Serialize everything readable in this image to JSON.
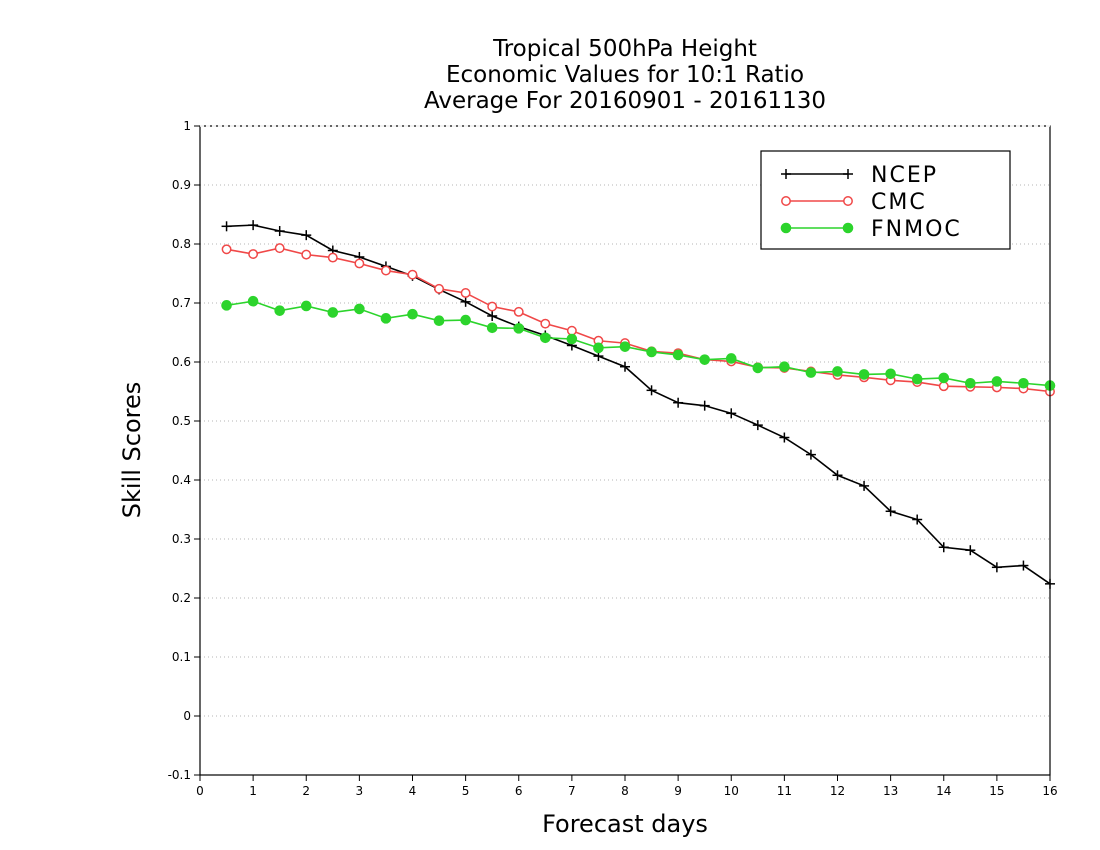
{
  "chart_data": {
    "type": "line",
    "title_lines": [
      "Tropical 500hPa Height",
      "Economic Values for 10:1 Ratio",
      "Average For 20160901 - 20161130"
    ],
    "xlabel": "Forecast days",
    "ylabel": "Skill Scores",
    "xlim": [
      0,
      16
    ],
    "ylim": [
      -0.1,
      1
    ],
    "x_ticks": [
      0,
      1,
      2,
      3,
      4,
      5,
      6,
      7,
      8,
      9,
      10,
      11,
      12,
      13,
      14,
      15,
      16
    ],
    "y_ticks": [
      -0.1,
      0,
      0.1,
      0.2,
      0.3,
      0.4,
      0.5,
      0.6,
      0.7,
      0.8,
      0.9,
      1
    ],
    "y_tick_labels": [
      "-0.1",
      "0",
      "0.1",
      "0.2",
      "0.3",
      "0.4",
      "0.5",
      "0.6",
      "0.7",
      "0.8",
      "0.9",
      "1"
    ],
    "grid": "horizontal dotted",
    "legend_position": "top-right",
    "x": [
      0.5,
      1,
      1.5,
      2,
      2.5,
      3,
      3.5,
      4,
      4.5,
      5,
      5.5,
      6,
      6.5,
      7,
      7.5,
      8,
      8.5,
      9,
      9.5,
      10,
      10.5,
      11,
      11.5,
      12,
      12.5,
      13,
      13.5,
      14,
      14.5,
      15,
      15.5,
      16
    ],
    "series": [
      {
        "name": "NCEP",
        "color": "#000000",
        "marker": "plus",
        "values": [
          0.83,
          0.832,
          0.822,
          0.815,
          0.789,
          0.778,
          0.762,
          0.746,
          0.723,
          0.702,
          0.678,
          0.66,
          0.645,
          0.628,
          0.61,
          0.592,
          0.552,
          0.531,
          0.526,
          0.513,
          0.493,
          0.472,
          0.443,
          0.408,
          0.39,
          0.347,
          0.333,
          0.286,
          0.281,
          0.252,
          0.255,
          0.224
        ]
      },
      {
        "name": "CMC",
        "color": "#f04848",
        "marker": "open-circle",
        "values": [
          0.791,
          0.783,
          0.793,
          0.782,
          0.777,
          0.767,
          0.755,
          0.748,
          0.724,
          0.717,
          0.694,
          0.685,
          0.665,
          0.653,
          0.636,
          0.632,
          0.618,
          0.615,
          0.604,
          0.601,
          0.591,
          0.59,
          0.584,
          0.578,
          0.574,
          0.569,
          0.566,
          0.559,
          0.558,
          0.557,
          0.555,
          0.55
        ]
      },
      {
        "name": "FNMOC",
        "color": "#2cd42c",
        "marker": "filled-circle",
        "values": [
          0.696,
          0.703,
          0.687,
          0.695,
          0.684,
          0.69,
          0.674,
          0.681,
          0.67,
          0.671,
          0.658,
          0.657,
          0.641,
          0.639,
          0.624,
          0.626,
          0.617,
          0.612,
          0.604,
          0.606,
          0.59,
          0.592,
          0.582,
          0.584,
          0.579,
          0.58,
          0.571,
          0.573,
          0.564,
          0.567,
          0.564,
          0.56
        ]
      }
    ]
  }
}
